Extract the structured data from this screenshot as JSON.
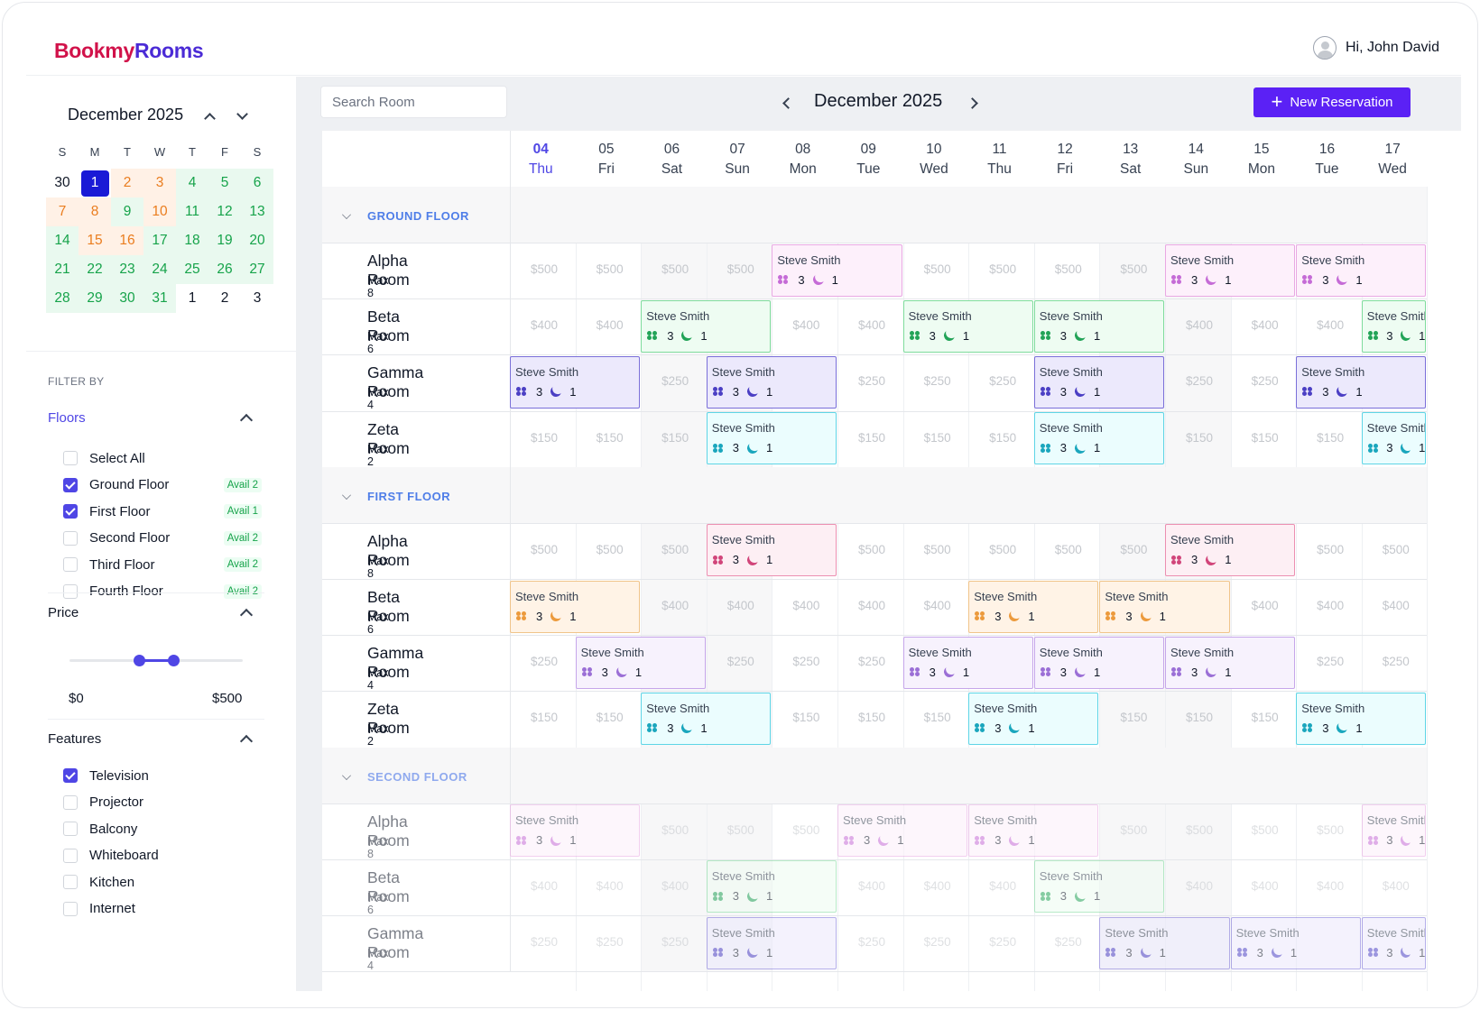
{
  "header": {
    "logo_part1": "Bookmy",
    "logo_part2": "Rooms",
    "greeting": "Hi, John David"
  },
  "mini_calendar": {
    "title": "December 2025",
    "weekdays": [
      "S",
      "M",
      "T",
      "W",
      "T",
      "F",
      "S"
    ],
    "days": [
      {
        "d": "30",
        "t": "w"
      },
      {
        "d": "1",
        "t": "sel"
      },
      {
        "d": "2",
        "t": "o"
      },
      {
        "d": "3",
        "t": "o"
      },
      {
        "d": "4",
        "t": "g"
      },
      {
        "d": "5",
        "t": "g"
      },
      {
        "d": "6",
        "t": "g"
      },
      {
        "d": "7",
        "t": "o"
      },
      {
        "d": "8",
        "t": "o"
      },
      {
        "d": "9",
        "t": "g"
      },
      {
        "d": "10",
        "t": "o"
      },
      {
        "d": "11",
        "t": "g"
      },
      {
        "d": "12",
        "t": "g"
      },
      {
        "d": "13",
        "t": "g"
      },
      {
        "d": "14",
        "t": "g"
      },
      {
        "d": "15",
        "t": "o"
      },
      {
        "d": "16",
        "t": "o"
      },
      {
        "d": "17",
        "t": "g"
      },
      {
        "d": "18",
        "t": "g"
      },
      {
        "d": "19",
        "t": "g"
      },
      {
        "d": "20",
        "t": "g"
      },
      {
        "d": "21",
        "t": "g"
      },
      {
        "d": "22",
        "t": "g"
      },
      {
        "d": "23",
        "t": "g"
      },
      {
        "d": "24",
        "t": "g"
      },
      {
        "d": "25",
        "t": "g"
      },
      {
        "d": "26",
        "t": "g"
      },
      {
        "d": "27",
        "t": "g"
      },
      {
        "d": "28",
        "t": "g"
      },
      {
        "d": "29",
        "t": "g"
      },
      {
        "d": "30",
        "t": "g"
      },
      {
        "d": "31",
        "t": "g"
      },
      {
        "d": "1",
        "t": "w"
      },
      {
        "d": "2",
        "t": "w"
      },
      {
        "d": "3",
        "t": "w"
      }
    ]
  },
  "filters": {
    "label": "FILTER BY",
    "floors": {
      "title": "Floors",
      "options": [
        {
          "label": "Select All",
          "checked": false,
          "avail": ""
        },
        {
          "label": "Ground Floor",
          "checked": true,
          "avail": "Avail 2"
        },
        {
          "label": "First Floor",
          "checked": true,
          "avail": "Avail 1"
        },
        {
          "label": "Second Floor",
          "checked": false,
          "avail": "Avail 2"
        },
        {
          "label": "Third Floor",
          "checked": false,
          "avail": "Avail 2"
        },
        {
          "label": "Fourth Floor",
          "checked": false,
          "avail": "Avail 2"
        }
      ]
    },
    "price": {
      "title": "Price",
      "min_label": "$0",
      "max_label": "$500",
      "range_fraction": [
        0.4,
        0.6
      ]
    },
    "features": {
      "title": "Features",
      "options": [
        {
          "label": "Television",
          "checked": true
        },
        {
          "label": "Projector",
          "checked": false
        },
        {
          "label": "Balcony",
          "checked": false
        },
        {
          "label": "Whiteboard",
          "checked": false
        },
        {
          "label": "Kitchen",
          "checked": false
        },
        {
          "label": "Internet",
          "checked": false
        }
      ]
    }
  },
  "toolbar": {
    "search_placeholder": "Search Room",
    "month_title": "December 2025",
    "new_reservation": "New Reservation"
  },
  "schedule": {
    "days": [
      {
        "num": "04",
        "dow": "Thu",
        "today": true
      },
      {
        "num": "05",
        "dow": "Fri"
      },
      {
        "num": "06",
        "dow": "Sat",
        "weekend": true
      },
      {
        "num": "07",
        "dow": "Sun",
        "weekend": true
      },
      {
        "num": "08",
        "dow": "Mon"
      },
      {
        "num": "09",
        "dow": "Tue"
      },
      {
        "num": "10",
        "dow": "Wed"
      },
      {
        "num": "11",
        "dow": "Thu"
      },
      {
        "num": "12",
        "dow": "Fri"
      },
      {
        "num": "13",
        "dow": "Sat",
        "weekend": true
      },
      {
        "num": "14",
        "dow": "Sun",
        "weekend": true
      },
      {
        "num": "15",
        "dow": "Mon"
      },
      {
        "num": "16",
        "dow": "Tue"
      },
      {
        "num": "17",
        "dow": "Wed"
      }
    ],
    "floors": [
      {
        "name": "GROUND FLOOR",
        "rooms": [
          {
            "name": "Alpha Room",
            "max": "Max 8",
            "price": "$500",
            "bookings": [
              {
                "start": 4,
                "span": 2,
                "color": "pink"
              },
              {
                "start": 10,
                "span": 2,
                "color": "pink"
              },
              {
                "start": 12,
                "span": 2,
                "color": "pink"
              }
            ]
          },
          {
            "name": "Beta Room",
            "max": "Max 6",
            "price": "$400",
            "bookings": [
              {
                "start": 2,
                "span": 2,
                "color": "green"
              },
              {
                "start": 6,
                "span": 2,
                "color": "green"
              },
              {
                "start": 8,
                "span": 2,
                "color": "green"
              },
              {
                "start": 13,
                "span": 1,
                "color": "green"
              }
            ]
          },
          {
            "name": "Gamma Room",
            "max": "Max 4",
            "price": "$250",
            "bookings": [
              {
                "start": 0,
                "span": 2,
                "color": "violet"
              },
              {
                "start": 3,
                "span": 2,
                "color": "violet"
              },
              {
                "start": 8,
                "span": 2,
                "color": "violet"
              },
              {
                "start": 12,
                "span": 2,
                "color": "violet"
              }
            ]
          },
          {
            "name": "Zeta Room",
            "max": "Max 2",
            "price": "$150",
            "bookings": [
              {
                "start": 3,
                "span": 2,
                "color": "cyan"
              },
              {
                "start": 8,
                "span": 2,
                "color": "cyan"
              },
              {
                "start": 13,
                "span": 1,
                "color": "cyan"
              }
            ]
          }
        ]
      },
      {
        "name": "FIRST FLOOR",
        "rooms": [
          {
            "name": "Alpha Room",
            "max": "Max 8",
            "price": "$500",
            "bookings": [
              {
                "start": 3,
                "span": 2,
                "color": "rose"
              },
              {
                "start": 10,
                "span": 2,
                "color": "rose"
              }
            ]
          },
          {
            "name": "Beta Room",
            "max": "Max 6",
            "price": "$400",
            "bookings": [
              {
                "start": 0,
                "span": 2,
                "color": "orange"
              },
              {
                "start": 7,
                "span": 2,
                "color": "orange"
              },
              {
                "start": 9,
                "span": 2,
                "color": "orange"
              }
            ]
          },
          {
            "name": "Gamma Room",
            "max": "Max 4",
            "price": "$250",
            "bookings": [
              {
                "start": 1,
                "span": 2,
                "color": "lav"
              },
              {
                "start": 6,
                "span": 2,
                "color": "lav"
              },
              {
                "start": 8,
                "span": 2,
                "color": "lav"
              },
              {
                "start": 10,
                "span": 2,
                "color": "lav"
              }
            ]
          },
          {
            "name": "Zeta Room",
            "max": "Max 2",
            "price": "$150",
            "bookings": [
              {
                "start": 2,
                "span": 2,
                "color": "cyan"
              },
              {
                "start": 7,
                "span": 2,
                "color": "cyan"
              },
              {
                "start": 12,
                "span": 2,
                "color": "cyan"
              }
            ]
          }
        ]
      },
      {
        "name": "SECOND FLOOR",
        "faded": true,
        "rooms": [
          {
            "name": "Alpha Room",
            "max": "Max 8",
            "price": "$500",
            "bookings": [
              {
                "start": 0,
                "span": 2,
                "color": "pink"
              },
              {
                "start": 5,
                "span": 2,
                "color": "pink"
              },
              {
                "start": 7,
                "span": 2,
                "color": "pink"
              },
              {
                "start": 13,
                "span": 1,
                "color": "pink"
              }
            ]
          },
          {
            "name": "Beta Room",
            "max": "Max 6",
            "price": "$400",
            "bookings": [
              {
                "start": 3,
                "span": 2,
                "color": "green"
              },
              {
                "start": 8,
                "span": 2,
                "color": "green"
              }
            ]
          },
          {
            "name": "Gamma Room",
            "max": "Max 4",
            "price": "$250",
            "bookings": [
              {
                "start": 3,
                "span": 2,
                "color": "violet"
              },
              {
                "start": 9,
                "span": 2,
                "color": "violet"
              },
              {
                "start": 11,
                "span": 2,
                "color": "violet"
              },
              {
                "start": 13,
                "span": 1,
                "color": "violet"
              }
            ]
          }
        ]
      }
    ],
    "booking_guest": "Steve Smith",
    "booking_people": "3",
    "booking_nights": "1"
  }
}
